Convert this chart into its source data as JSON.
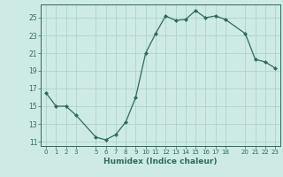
{
  "x": [
    0,
    1,
    2,
    3,
    5,
    6,
    7,
    8,
    9,
    10,
    11,
    12,
    13,
    14,
    15,
    16,
    17,
    18,
    20,
    21,
    22,
    23
  ],
  "y": [
    16.5,
    15.0,
    15.0,
    14.0,
    11.5,
    11.2,
    11.8,
    13.2,
    16.0,
    21.0,
    23.2,
    25.2,
    24.7,
    24.8,
    25.8,
    25.0,
    25.2,
    24.8,
    23.2,
    20.3,
    20.0,
    19.3
  ],
  "line_color": "#2e6b5e",
  "marker": "D",
  "marker_size": 2.0,
  "bg_color": "#ceeae4",
  "grid_color": "#aacfc8",
  "tick_color": "#2e6b5e",
  "xlabel": "Humidex (Indice chaleur)",
  "xlim": [
    -0.5,
    23.5
  ],
  "ylim": [
    10.5,
    26.5
  ],
  "yticks": [
    11,
    13,
    15,
    17,
    19,
    21,
    23,
    25
  ],
  "xticks": [
    0,
    1,
    2,
    3,
    5,
    6,
    7,
    8,
    9,
    10,
    11,
    12,
    13,
    14,
    15,
    16,
    17,
    18,
    20,
    21,
    22,
    23
  ]
}
